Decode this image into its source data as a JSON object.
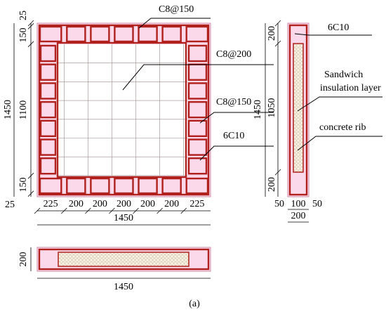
{
  "front_view": {
    "labels": [
      "C8@150",
      "C8@200",
      "C8@150",
      "6C10"
    ],
    "vertical_dims": [
      25,
      150,
      1100,
      150,
      25
    ],
    "total_height": 1450,
    "horizontal_dims": [
      225,
      200,
      200,
      200,
      200,
      200,
      225
    ],
    "total_width": 1450
  },
  "side_view": {
    "labels": [
      "6C10",
      "Sandwich",
      "insulation layer",
      "concrete rib"
    ],
    "vertical_dims": [
      200,
      1050,
      200
    ],
    "total_height": 1450,
    "horizontal_dims": [
      50,
      100,
      50
    ],
    "total_width": 200
  },
  "bottom_view": {
    "height_dim": 200,
    "total_width": 1450
  },
  "caption": "(a)"
}
